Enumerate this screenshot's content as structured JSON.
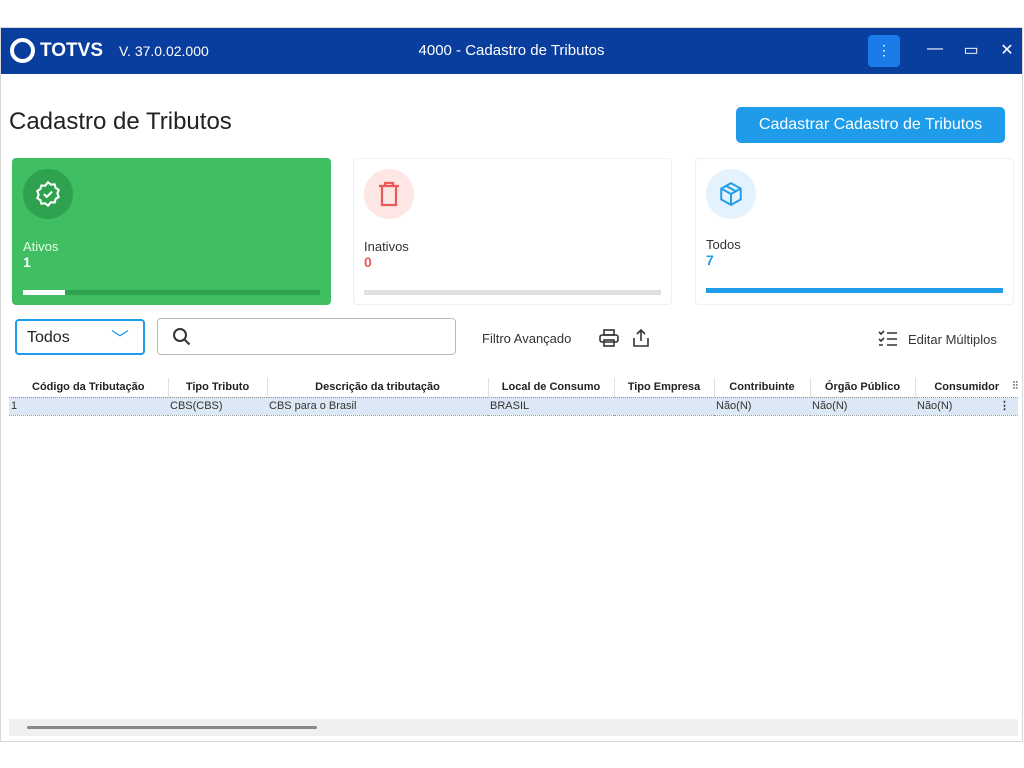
{
  "window": {
    "brand": "TOTVS",
    "version": "V. 37.0.02.000",
    "title": "4000 - Cadastro de Tributos"
  },
  "page": {
    "title": "Cadastro de Tributos",
    "create_button": "Cadastrar Cadastro de Tributos"
  },
  "cards": [
    {
      "label": "Ativos",
      "value": "1",
      "progress": 0.14,
      "icon": "badge-check-icon",
      "color": "#3fbe62"
    },
    {
      "label": "Inativos",
      "value": "0",
      "progress": 0,
      "icon": "trash-icon",
      "color": "#e85a5a"
    },
    {
      "label": "Todos",
      "value": "7",
      "progress": 1,
      "icon": "box-icon",
      "color": "#1e9be9"
    }
  ],
  "filters": {
    "status_select": "Todos",
    "search_placeholder": "",
    "advanced_filter": "Filtro Avançado",
    "edit_multiple": "Editar Múltiplos"
  },
  "table": {
    "columns": [
      "Código da Tributação",
      "Tipo Tributo",
      "Descrição da tributação",
      "Local de Consumo",
      "Tipo Empresa",
      "Contribuinte",
      "Órgão Público",
      "Consumidor"
    ],
    "rows": [
      [
        "1",
        "CBS(CBS)",
        "CBS para o Brasil",
        "BRASIL",
        "",
        "Não(N)",
        "Não(N)",
        "Não(N)"
      ]
    ]
  }
}
